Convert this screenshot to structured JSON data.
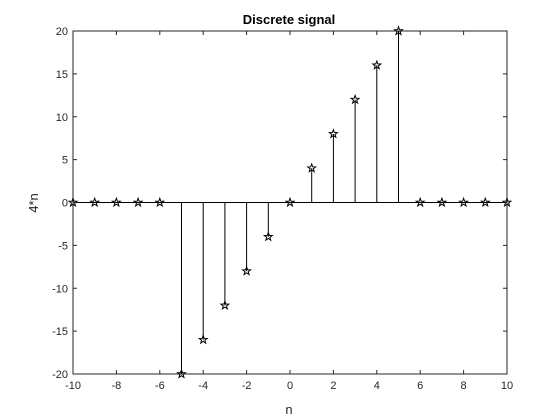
{
  "chart_data": {
    "type": "stem",
    "title": "Discrete signal",
    "xlabel": "n",
    "ylabel": "4*n",
    "xlim": [
      -10,
      10
    ],
    "ylim": [
      -20,
      20
    ],
    "xticks": [
      -10,
      -8,
      -6,
      -4,
      -2,
      0,
      2,
      4,
      6,
      8,
      10
    ],
    "yticks": [
      -20,
      -15,
      -10,
      -5,
      0,
      5,
      10,
      15,
      20
    ],
    "marker": "pentagram",
    "grid": false,
    "series": [
      {
        "name": "4*n",
        "x": [
          -10,
          -9,
          -8,
          -7,
          -6,
          -5,
          -4,
          -3,
          -2,
          -1,
          0,
          1,
          2,
          3,
          4,
          5,
          6,
          7,
          8,
          9,
          10
        ],
        "values": [
          0,
          0,
          0,
          0,
          0,
          -20,
          -16,
          -12,
          -8,
          -4,
          0,
          4,
          8,
          12,
          16,
          20,
          0,
          0,
          0,
          0,
          0
        ]
      }
    ]
  },
  "colors": {
    "axes": "#262626",
    "stem": "#000000",
    "background": "#ffffff"
  }
}
